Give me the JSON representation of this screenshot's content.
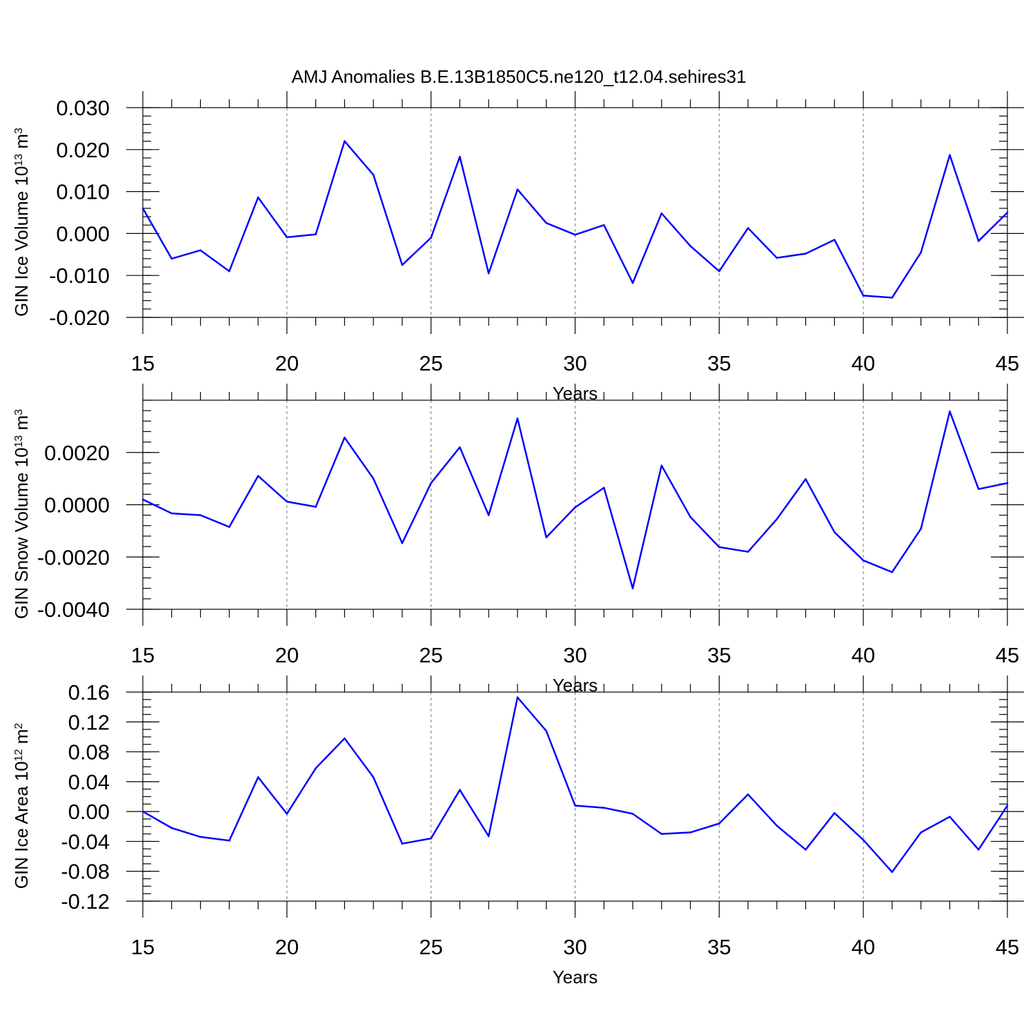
{
  "chart_data": [
    {
      "type": "line",
      "title": "AMJ Anomalies B.E.13B1850C5.ne120_t12.04.sehires31",
      "xlabel": "Years",
      "ylabel": "GIN Ice Volume 10",
      "ylabel_exponent": "13",
      "ylabel_unit": "m",
      "ylabel_unit_exponent": "3",
      "xlim": [
        15,
        45
      ],
      "ylim": [
        -0.02,
        0.03
      ],
      "yticks": [
        -0.02,
        -0.01,
        0.0,
        0.01,
        0.02,
        0.03
      ],
      "ytick_labels": [
        "-0.020",
        "-0.010",
        "0.000",
        "0.010",
        "0.020",
        "0.030"
      ],
      "y_minor_step": 0.002,
      "xticks": [
        15,
        20,
        25,
        30,
        35,
        40,
        45
      ],
      "xtick_labels": [
        "15",
        "20",
        "25",
        "30",
        "35",
        "40",
        "45"
      ],
      "grid": "vertical dashed at major x ticks",
      "series": [
        {
          "name": "GIN Ice Volume",
          "color": "#0000ff",
          "x": [
            15,
            16,
            17,
            18,
            19,
            20,
            21,
            22,
            23,
            24,
            25,
            26,
            27,
            28,
            29,
            30,
            31,
            32,
            33,
            34,
            35,
            36,
            37,
            38,
            39,
            40,
            41,
            42,
            43,
            44,
            45
          ],
          "values": [
            0.006,
            -0.006,
            -0.004,
            -0.009,
            0.0086,
            -0.0009,
            -0.0002,
            0.022,
            0.014,
            -0.0075,
            -0.001,
            0.0183,
            -0.0095,
            0.0105,
            0.0025,
            -0.0003,
            0.002,
            -0.0118,
            0.0048,
            -0.003,
            -0.009,
            0.0013,
            -0.0058,
            -0.0048,
            -0.0015,
            -0.0148,
            -0.0153,
            -0.0045,
            0.0187,
            -0.0018,
            0.005
          ]
        }
      ]
    },
    {
      "type": "line",
      "title": "",
      "xlabel": "Years",
      "ylabel": "GIN Snow Volume 10",
      "ylabel_exponent": "13",
      "ylabel_unit": "m",
      "ylabel_unit_exponent": "3",
      "xlim": [
        15,
        45
      ],
      "ylim": [
        -0.004,
        0.004
      ],
      "yticks": [
        -0.004,
        -0.002,
        0.0,
        0.002
      ],
      "ytick_labels": [
        "-0.0040",
        "-0.0020",
        "0.0000",
        "0.0020"
      ],
      "y_minor_step": 0.0004,
      "xticks": [
        15,
        20,
        25,
        30,
        35,
        40,
        45
      ],
      "xtick_labels": [
        "15",
        "20",
        "25",
        "30",
        "35",
        "40",
        "45"
      ],
      "grid": "vertical dashed at major x ticks",
      "series": [
        {
          "name": "GIN Snow Volume",
          "color": "#0000ff",
          "x": [
            15,
            16,
            17,
            18,
            19,
            20,
            21,
            22,
            23,
            24,
            25,
            26,
            27,
            28,
            29,
            30,
            31,
            32,
            33,
            34,
            35,
            36,
            37,
            38,
            39,
            40,
            41,
            42,
            43,
            44,
            45
          ],
          "values": [
            0.0002,
            -0.00033,
            -0.0004,
            -0.00085,
            0.0011,
            0.00012,
            -8e-05,
            0.00257,
            0.001,
            -0.00147,
            0.00083,
            0.0022,
            -0.0004,
            0.0033,
            -0.00125,
            -0.0001,
            0.00065,
            -0.0032,
            0.0015,
            -0.00047,
            -0.00162,
            -0.0018,
            -0.00055,
            0.00098,
            -0.00105,
            -0.00213,
            -0.00258,
            -0.00092,
            0.00357,
            0.0006,
            0.00083
          ]
        }
      ]
    },
    {
      "type": "line",
      "title": "",
      "xlabel": "Years",
      "ylabel": "GIN Ice Area 10",
      "ylabel_exponent": "12",
      "ylabel_unit": "m",
      "ylabel_unit_exponent": "2",
      "xlim": [
        15,
        45
      ],
      "ylim": [
        -0.12,
        0.16
      ],
      "yticks": [
        -0.12,
        -0.08,
        -0.04,
        0.0,
        0.04,
        0.08,
        0.12,
        0.16
      ],
      "ytick_labels": [
        "-0.12",
        "-0.08",
        "-0.04",
        "0.00",
        "0.04",
        "0.08",
        "0.12",
        "0.16"
      ],
      "y_minor_step": 0.01,
      "xticks": [
        15,
        20,
        25,
        30,
        35,
        40,
        45
      ],
      "xtick_labels": [
        "15",
        "20",
        "25",
        "30",
        "35",
        "40",
        "45"
      ],
      "grid": "vertical dashed at major x ticks",
      "series": [
        {
          "name": "GIN Ice Area",
          "color": "#0000ff",
          "x": [
            15,
            16,
            17,
            18,
            19,
            20,
            21,
            22,
            23,
            24,
            25,
            26,
            27,
            28,
            29,
            30,
            31,
            32,
            33,
            34,
            35,
            36,
            37,
            38,
            39,
            40,
            41,
            42,
            43,
            44,
            45
          ],
          "values": [
            0.0,
            -0.022,
            -0.034,
            -0.039,
            0.046,
            -0.003,
            0.058,
            0.098,
            0.046,
            -0.043,
            -0.036,
            0.029,
            -0.033,
            0.153,
            0.108,
            0.008,
            0.005,
            -0.003,
            -0.03,
            -0.028,
            -0.016,
            0.023,
            -0.019,
            -0.051,
            -0.002,
            -0.038,
            -0.081,
            -0.028,
            -0.007,
            -0.051,
            0.008
          ]
        }
      ]
    }
  ]
}
